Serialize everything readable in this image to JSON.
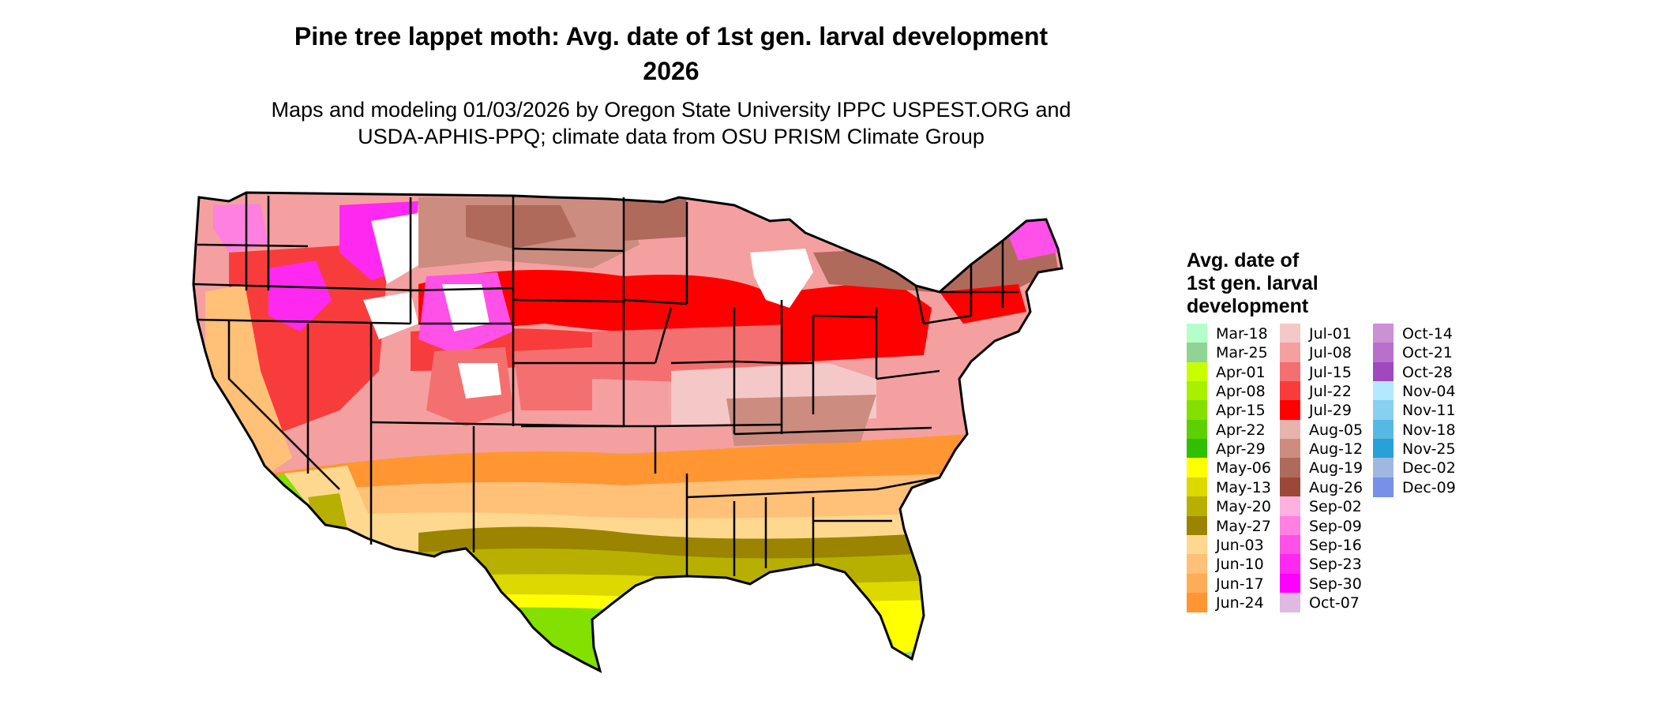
{
  "title_line1": "Pine tree lappet moth: Avg. date of 1st gen. larval development",
  "title_line2": "2026",
  "subtitle_line1": "Maps and modeling 01/03/2026 by Oregon State University IPPC USPEST.ORG and",
  "subtitle_line2": "USDA-APHIS-PPQ; climate data from OSU PRISM Climate Group",
  "legend": {
    "title_line1": "Avg. date of",
    "title_line2": "1st gen. larval",
    "title_line3": "development",
    "columns": [
      [
        {
          "label": "Mar-18",
          "color": "#b4ffc8"
        },
        {
          "label": "Mar-25",
          "color": "#8fd494"
        },
        {
          "label": "Apr-01",
          "color": "#c8ff00"
        },
        {
          "label": "Apr-08",
          "color": "#a9f000"
        },
        {
          "label": "Apr-15",
          "color": "#84e000"
        },
        {
          "label": "Apr-22",
          "color": "#5cd000"
        },
        {
          "label": "Apr-29",
          "color": "#30c000"
        },
        {
          "label": "May-06",
          "color": "#ffff00"
        },
        {
          "label": "May-13",
          "color": "#dcd800"
        },
        {
          "label": "May-20",
          "color": "#b8b000"
        },
        {
          "label": "May-27",
          "color": "#9a8400"
        },
        {
          "label": "Jun-03",
          "color": "#ffd890"
        },
        {
          "label": "Jun-10",
          "color": "#ffc078"
        },
        {
          "label": "Jun-17",
          "color": "#ffac58"
        },
        {
          "label": "Jun-24",
          "color": "#ff9632"
        }
      ],
      [
        {
          "label": "Jul-01",
          "color": "#f5c8c8"
        },
        {
          "label": "Jul-08",
          "color": "#f4a0a0"
        },
        {
          "label": "Jul-15",
          "color": "#f47070"
        },
        {
          "label": "Jul-22",
          "color": "#f83c3c"
        },
        {
          "label": "Jul-29",
          "color": "#ff0000"
        },
        {
          "label": "Aug-05",
          "color": "#e6b4ac"
        },
        {
          "label": "Aug-12",
          "color": "#cc8c80"
        },
        {
          "label": "Aug-19",
          "color": "#b06a5c"
        },
        {
          "label": "Aug-26",
          "color": "#9c4838"
        },
        {
          "label": "Sep-02",
          "color": "#ffb0e0"
        },
        {
          "label": "Sep-09",
          "color": "#ff80e0"
        },
        {
          "label": "Sep-16",
          "color": "#ff50e8"
        },
        {
          "label": "Sep-23",
          "color": "#ff28f0"
        },
        {
          "label": "Sep-30",
          "color": "#ff00ff"
        },
        {
          "label": "Oct-07",
          "color": "#e0b8e4"
        }
      ],
      [
        {
          "label": "Oct-14",
          "color": "#cc90d4"
        },
        {
          "label": "Oct-21",
          "color": "#b870cc"
        },
        {
          "label": "Oct-28",
          "color": "#a048c0"
        },
        {
          "label": "Nov-04",
          "color": "#b4e8ff"
        },
        {
          "label": "Nov-11",
          "color": "#88d0f0"
        },
        {
          "label": "Nov-18",
          "color": "#58b8e4"
        },
        {
          "label": "Nov-25",
          "color": "#28a0d8"
        },
        {
          "label": "Dec-02",
          "color": "#a0b8e0"
        },
        {
          "label": "Dec-09",
          "color": "#7890e8"
        }
      ]
    ]
  }
}
